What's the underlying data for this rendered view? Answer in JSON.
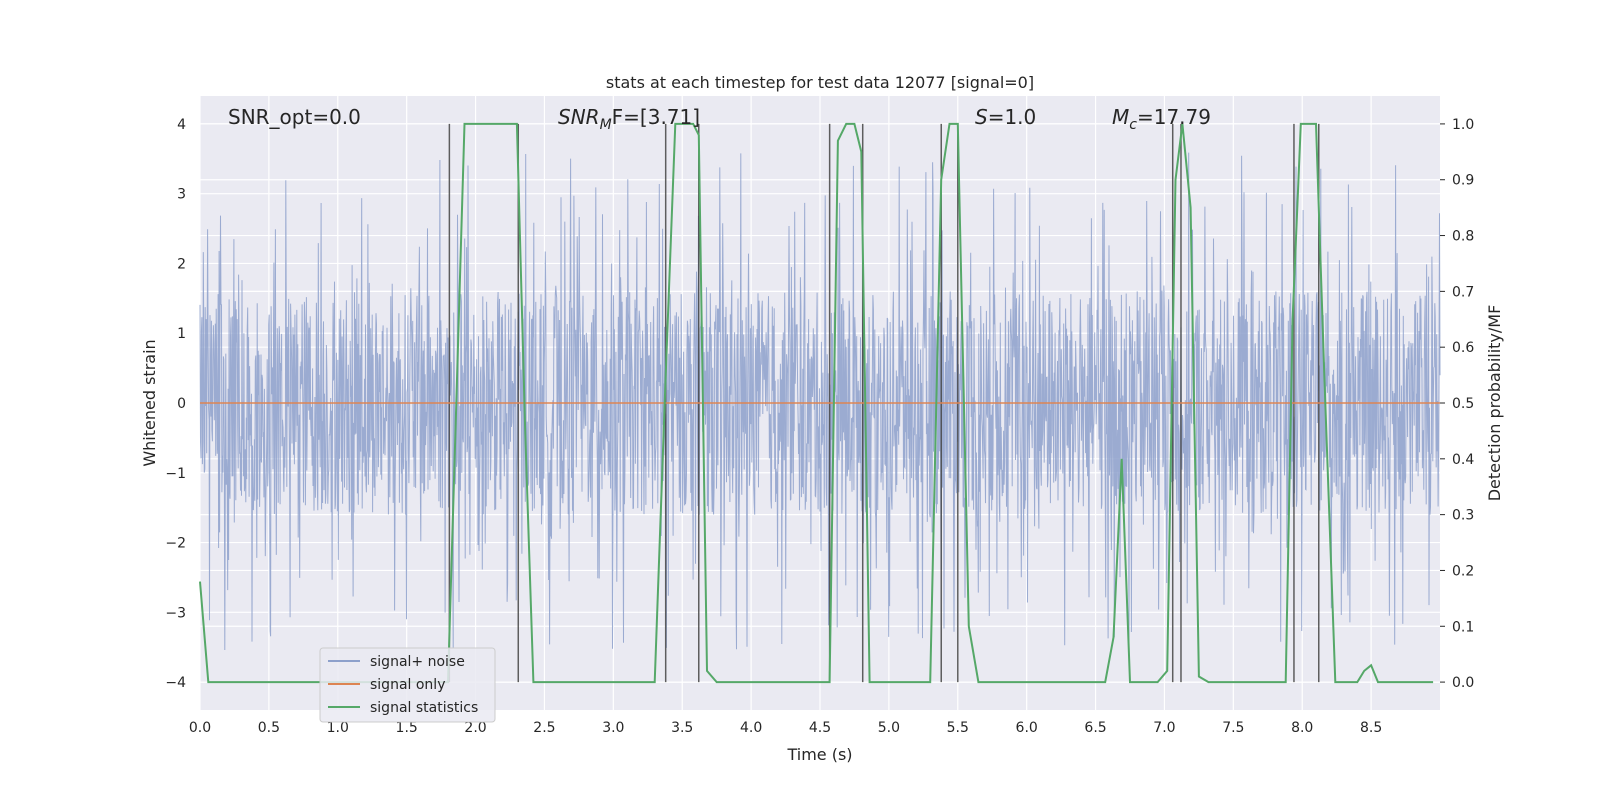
{
  "chart_data": {
    "type": "line",
    "title": "stats at each timestep for test data 12077 [signal=0]",
    "xlabel": "Time (s)",
    "ylabel": "Whitened strain",
    "ylabel_right": "Detection probability/MF",
    "xlim": [
      0.0,
      9.0
    ],
    "ylim": [
      -4.4,
      4.4
    ],
    "ylim_right": [
      -0.05,
      1.05
    ],
    "xticks": [
      "0.0",
      "0.5",
      "1.0",
      "1.5",
      "2.0",
      "2.5",
      "3.0",
      "3.5",
      "4.0",
      "4.5",
      "5.0",
      "5.5",
      "6.0",
      "6.5",
      "7.0",
      "7.5",
      "8.0",
      "8.5"
    ],
    "yticks": [
      "4",
      "3",
      "2",
      "1",
      "0",
      "−1",
      "−2",
      "−3",
      "−4"
    ],
    "yticks_right": [
      "1.0",
      "0.9",
      "0.8",
      "0.7",
      "0.6",
      "0.5",
      "0.4",
      "0.3",
      "0.2",
      "0.1",
      "0.0"
    ],
    "grid": true,
    "legend_position": "lower-left",
    "annotations": {
      "snr_opt": "SNR_opt=0.0",
      "snr_mf_main": "SNR",
      "snr_mf_sub": "M",
      "snr_mf_rest": "F=[3.71]",
      "s_italic": "S",
      "s_rest": "=1.0",
      "mc_main": "M",
      "mc_sub": "c",
      "mc_rest": "=17.79"
    },
    "series": [
      {
        "name": "signal+ noise",
        "color": "#8da0cb",
        "style": "dense noise, mostly within ±2.0, peaks to about ±3.6",
        "envelope_core": 1.6,
        "envelope_peak": 3.6
      },
      {
        "name": "signal only",
        "color": "#dd8452",
        "x": [
          0.0,
          9.0
        ],
        "y": [
          0.0,
          0.0
        ]
      },
      {
        "name": "signal statistics",
        "color": "#55a868",
        "axis": "right",
        "x": [
          0.0,
          0.06,
          0.12,
          0.18,
          1.8,
          1.86,
          1.92,
          2.3,
          2.36,
          2.42,
          2.48,
          3.3,
          3.38,
          3.45,
          3.5,
          3.58,
          3.62,
          3.68,
          3.75,
          4.57,
          4.63,
          4.69,
          4.75,
          4.8,
          4.86,
          5.3,
          5.38,
          5.44,
          5.5,
          5.58,
          5.65,
          6.57,
          6.63,
          6.69,
          6.75,
          6.95,
          7.02,
          7.08,
          7.13,
          7.19,
          7.25,
          7.32,
          7.88,
          7.93,
          7.99,
          8.1,
          8.16,
          8.24,
          8.4,
          8.45,
          8.5,
          8.55,
          8.95
        ],
        "y": [
          0.18,
          0.0,
          0.0,
          0.0,
          0.0,
          0.5,
          1.0,
          1.0,
          0.45,
          0.0,
          0.0,
          0.0,
          0.55,
          1.0,
          1.0,
          1.0,
          0.98,
          0.02,
          0.0,
          0.0,
          0.97,
          1.0,
          1.0,
          0.95,
          0.0,
          0.0,
          0.9,
          1.0,
          1.0,
          0.1,
          0.0,
          0.0,
          0.08,
          0.4,
          0.0,
          0.0,
          0.02,
          0.9,
          1.0,
          0.85,
          0.01,
          0.0,
          0.0,
          0.65,
          1.0,
          1.0,
          0.55,
          0.0,
          0.0,
          0.02,
          0.03,
          0.0,
          0.0
        ]
      }
    ],
    "vlines": [
      1.81,
      2.31,
      3.38,
      3.62,
      4.57,
      4.81,
      5.38,
      5.5,
      7.06,
      7.12,
      7.94,
      8.12
    ]
  }
}
